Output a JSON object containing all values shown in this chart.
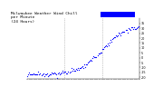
{
  "title": "Milwaukee Weather Wind Chill\nper Minute\n(24 Hours)",
  "background_color": "#ffffff",
  "dot_color": "#0000ff",
  "highlight_color": "#0000ff",
  "vline_color": "#888888",
  "n_points": 1440,
  "y_start": -18,
  "y_mid_flat": -16,
  "y_end": 34,
  "ylim": [
    -22,
    40
  ],
  "xlim": [
    0,
    1440
  ],
  "yticks": [
    35,
    30,
    25,
    20,
    15,
    10,
    5,
    0,
    -5,
    -10,
    -15,
    -20
  ],
  "ytick_labels": [
    "35",
    "30",
    "25",
    "20",
    "15",
    "10",
    "5",
    "0",
    "-5",
    "-10",
    "-15",
    "-20"
  ],
  "title_fontsize": 3.2,
  "tick_fontsize": 2.4,
  "vline_positions": [
    480,
    960
  ],
  "highlight_x_start": 1050,
  "highlight_x_end": 1380,
  "highlight_y": 37,
  "highlight_height": 3,
  "scatter_stride": 12,
  "scatter_size": 0.8
}
